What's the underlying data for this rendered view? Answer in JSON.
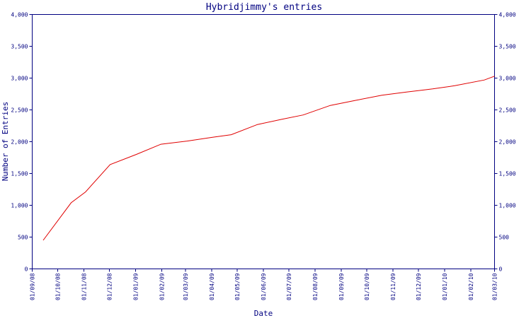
{
  "chart_data": {
    "type": "line",
    "title": "Hybridjimmy's entries",
    "xlabel": "Date",
    "ylabel": "Number of Entries",
    "ylim": [
      0,
      4000
    ],
    "y_ticks": [
      0,
      500,
      1000,
      1500,
      2000,
      2500,
      3000,
      3500,
      4000
    ],
    "y_tick_labels": [
      "0",
      "500",
      "1,000",
      "1,500",
      "2,000",
      "2,500",
      "3,000",
      "3,500",
      "4,000"
    ],
    "x_range": [
      "2008-09-01",
      "2010-03-01"
    ],
    "x_ticks": [
      "2008-09-01",
      "2008-10-01",
      "2008-11-01",
      "2008-12-01",
      "2009-01-01",
      "2009-02-01",
      "2009-03-01",
      "2009-04-01",
      "2009-05-01",
      "2009-06-01",
      "2009-07-01",
      "2009-08-01",
      "2009-09-01",
      "2009-10-01",
      "2009-11-01",
      "2009-12-01",
      "2010-01-01",
      "2010-02-01",
      "2010-03-01"
    ],
    "x_tick_labels": [
      "01/09/08",
      "01/10/08",
      "01/11/08",
      "01/12/08",
      "01/01/09",
      "01/02/09",
      "01/03/09",
      "01/04/09",
      "01/05/09",
      "01/06/09",
      "01/07/09",
      "01/08/09",
      "01/09/09",
      "01/10/09",
      "01/11/09",
      "01/12/09",
      "01/01/10",
      "01/02/10",
      "01/03/10"
    ],
    "grid": false,
    "legend": "none",
    "series_color": "#e00000",
    "axis_color": "#000080",
    "series": [
      {
        "x": [
          "2008-09-14",
          "2008-10-17",
          "2008-11-03",
          "2008-12-02",
          "2009-01-02",
          "2009-01-31",
          "2009-03-03",
          "2009-04-02",
          "2009-04-24",
          "2009-05-25",
          "2009-06-22",
          "2009-07-18",
          "2009-08-19",
          "2009-09-18",
          "2009-10-19",
          "2009-11-17",
          "2009-12-18",
          "2010-01-13",
          "2010-02-17",
          "2010-03-01"
        ],
        "y": [
          450,
          1040,
          1210,
          1640,
          1800,
          1960,
          2010,
          2070,
          2110,
          2270,
          2350,
          2420,
          2570,
          2650,
          2730,
          2780,
          2830,
          2880,
          2970,
          3030
        ]
      }
    ]
  }
}
